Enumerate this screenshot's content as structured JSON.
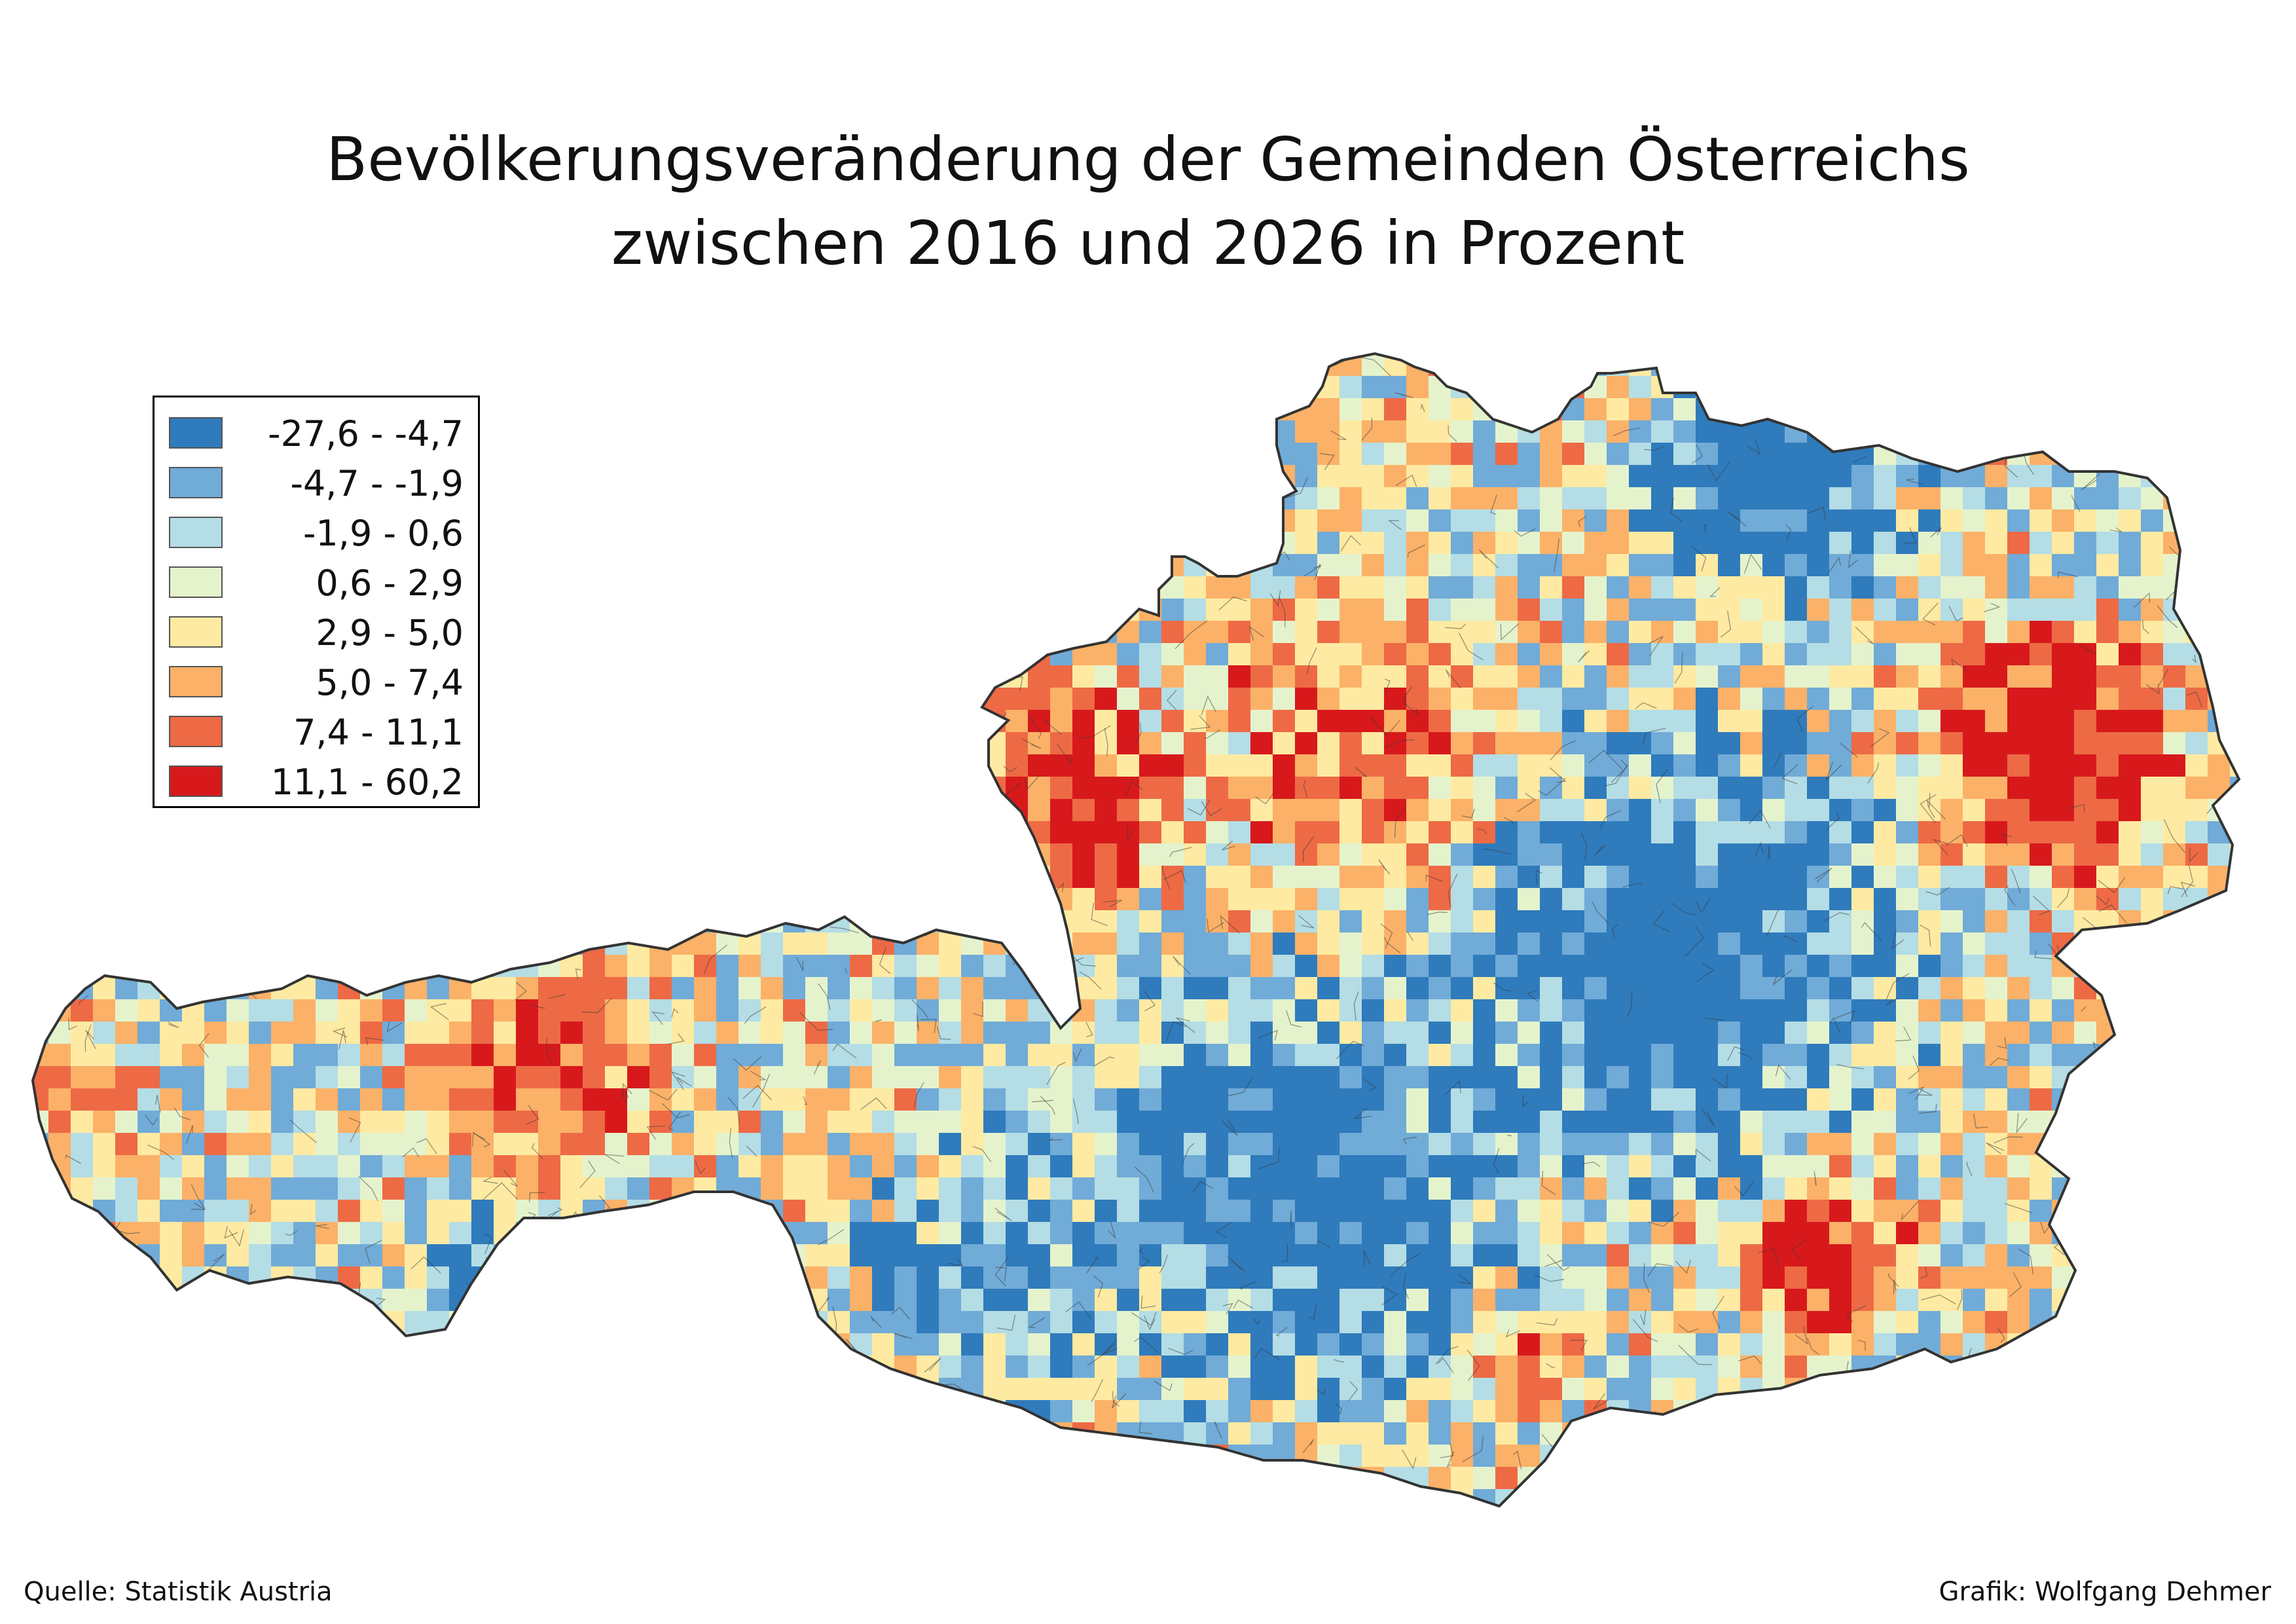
{
  "title": {
    "line1": "Bevölkerungsveränderung der Gemeinden Österreichs",
    "line2": "zwischen 2016 und 2026 in Prozent"
  },
  "legend": {
    "items": [
      {
        "label": "-27,6 - -4,7",
        "color": "#2f7bbc"
      },
      {
        "label": "-4,7 - -1,9",
        "color": "#71abd7"
      },
      {
        "label": "-1,9 - 0,6",
        "color": "#b4dde5"
      },
      {
        "label": "0,6 - 2,9",
        "color": "#e5f3cd"
      },
      {
        "label": "2,9 - 5,0",
        "color": "#feeaa2"
      },
      {
        "label": "5,0 - 7,4",
        "color": "#fbb168"
      },
      {
        "label": "7,4 - 11,1",
        "color": "#ed6a45"
      },
      {
        "label": "11,1 - 60,2",
        "color": "#d7191c"
      }
    ]
  },
  "footer": {
    "source": "Quelle: Statistik Austria",
    "credit": "Grafik: Wolfgang Dehmer"
  }
}
